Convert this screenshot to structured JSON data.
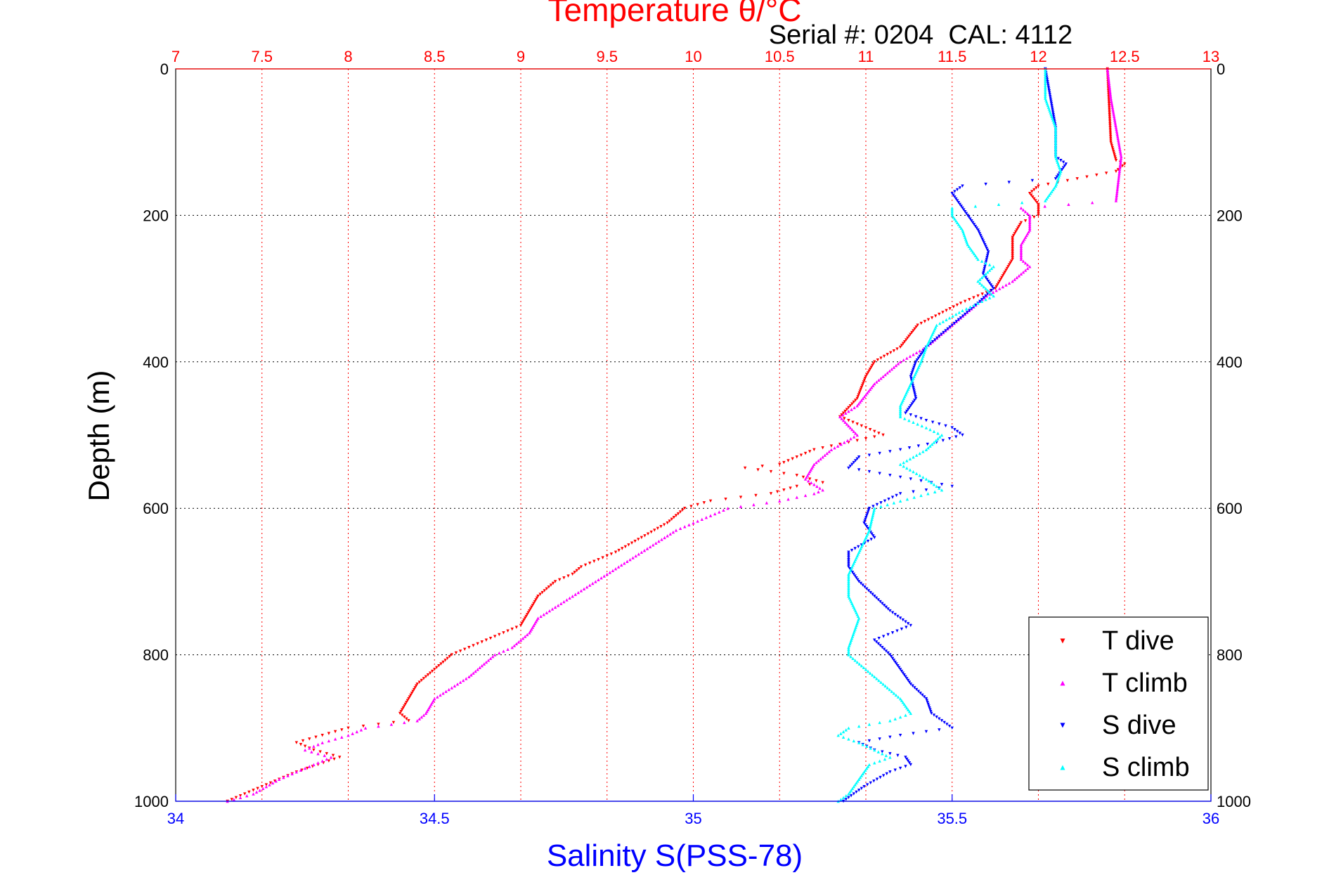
{
  "chart_data": {
    "type": "scatter",
    "title": "Temperature θ/°C",
    "subtitle": "Serial #: 0204  CAL: 4112",
    "ylabel": "Depth (m)",
    "xlabel": "Salinity S(PSS-78)",
    "temperature_axis": {
      "label": "Temperature θ/°C",
      "range": [
        7,
        13
      ],
      "ticks": [
        "7",
        "7.5",
        "8",
        "8.5",
        "9",
        "9.5",
        "10",
        "10.5",
        "11",
        "11.5",
        "12",
        "12.5",
        "13"
      ]
    },
    "salinity_axis": {
      "label": "Salinity S(PSS-78)",
      "range": [
        34,
        36
      ],
      "ticks": [
        "34",
        "34.5",
        "35",
        "35.5",
        "36"
      ]
    },
    "depth_axis": {
      "label": "Depth (m)",
      "range": [
        0,
        1000
      ],
      "reversed": true,
      "ticks": [
        "0",
        "200",
        "400",
        "600",
        "800",
        "1000"
      ]
    },
    "grid": true,
    "legend_position": "bottom-right",
    "series": [
      {
        "name": "T dive",
        "axis": "temperature",
        "color": "#ff0000",
        "marker": "triangle-down",
        "depth": [
          0,
          50,
          100,
          125,
          130,
          140,
          160,
          170,
          185,
          200,
          210,
          230,
          260,
          280,
          300,
          320,
          350,
          380,
          400,
          420,
          450,
          475,
          480,
          490,
          500,
          510,
          520,
          530,
          540,
          545,
          555,
          565,
          570,
          580,
          590,
          600,
          620,
          640,
          660,
          680,
          690,
          700,
          720,
          740,
          760,
          780,
          800,
          820,
          840,
          860,
          880,
          890,
          900,
          910,
          920,
          930,
          940,
          960,
          980,
          1000
        ],
        "values": [
          12.4,
          12.41,
          12.42,
          12.45,
          12.5,
          12.45,
          12.0,
          11.95,
          12.0,
          12.0,
          11.9,
          11.85,
          11.85,
          11.8,
          11.75,
          11.55,
          11.3,
          11.2,
          11.05,
          11.0,
          10.95,
          10.85,
          10.9,
          11.0,
          11.1,
          10.9,
          10.7,
          10.6,
          10.5,
          10.3,
          10.6,
          10.75,
          10.6,
          10.45,
          10.1,
          9.95,
          9.85,
          9.7,
          9.55,
          9.35,
          9.3,
          9.2,
          9.1,
          9.05,
          9.0,
          8.8,
          8.6,
          8.5,
          8.4,
          8.35,
          8.3,
          8.35,
          8.0,
          7.85,
          7.7,
          7.8,
          7.95,
          7.7,
          7.5,
          7.3
        ]
      },
      {
        "name": "T climb",
        "axis": "temperature",
        "color": "#ff00ff",
        "marker": "triangle-up",
        "depth": [
          0,
          40,
          80,
          120,
          140,
          160,
          180,
          190,
          200,
          220,
          240,
          260,
          270,
          290,
          310,
          330,
          350,
          380,
          400,
          430,
          460,
          475,
          500,
          520,
          540,
          560,
          575,
          580,
          590,
          600,
          630,
          660,
          690,
          720,
          750,
          770,
          790,
          800,
          830,
          860,
          880,
          890,
          900,
          910,
          920,
          930,
          940,
          950,
          970,
          990,
          1000
        ],
        "values": [
          12.4,
          12.42,
          12.45,
          12.48,
          12.47,
          12.46,
          12.45,
          11.9,
          11.95,
          11.95,
          11.9,
          11.9,
          11.95,
          11.85,
          11.7,
          11.6,
          11.5,
          11.35,
          11.2,
          11.05,
          10.95,
          10.85,
          10.95,
          10.8,
          10.7,
          10.65,
          10.75,
          10.7,
          10.5,
          10.2,
          9.9,
          9.7,
          9.5,
          9.3,
          9.1,
          9.05,
          8.95,
          8.85,
          8.7,
          8.5,
          8.45,
          8.4,
          8.1,
          8.0,
          7.85,
          7.75,
          7.9,
          7.8,
          7.6,
          7.45,
          7.3
        ]
      },
      {
        "name": "S dive",
        "axis": "salinity",
        "color": "#0000ff",
        "marker": "triangle-down",
        "depth": [
          0,
          40,
          80,
          120,
          130,
          150,
          160,
          170,
          190,
          220,
          250,
          280,
          300,
          320,
          350,
          380,
          400,
          420,
          450,
          470,
          480,
          490,
          500,
          510,
          520,
          530,
          545,
          560,
          570,
          580,
          600,
          620,
          640,
          660,
          680,
          700,
          720,
          740,
          760,
          780,
          800,
          820,
          840,
          860,
          880,
          900,
          910,
          920,
          930,
          940,
          950,
          960,
          980,
          1000
        ],
        "values": [
          35.68,
          35.69,
          35.7,
          35.7,
          35.72,
          35.7,
          35.52,
          35.5,
          35.52,
          35.55,
          35.57,
          35.56,
          35.58,
          35.55,
          35.5,
          35.45,
          35.43,
          35.42,
          35.43,
          35.41,
          35.45,
          35.5,
          35.52,
          35.47,
          35.4,
          35.32,
          35.3,
          35.42,
          35.5,
          35.4,
          35.34,
          35.33,
          35.35,
          35.3,
          35.3,
          35.32,
          35.35,
          35.38,
          35.42,
          35.35,
          35.38,
          35.4,
          35.42,
          35.45,
          35.46,
          35.5,
          35.4,
          35.32,
          35.35,
          35.41,
          35.42,
          35.38,
          35.33,
          35.29
        ]
      },
      {
        "name": "S climb",
        "axis": "salinity",
        "color": "#00ffff",
        "marker": "triangle-up",
        "depth": [
          0,
          40,
          80,
          120,
          140,
          160,
          180,
          190,
          200,
          220,
          240,
          260,
          270,
          290,
          310,
          330,
          350,
          380,
          400,
          430,
          460,
          475,
          490,
          500,
          520,
          540,
          560,
          575,
          590,
          600,
          630,
          660,
          690,
          720,
          750,
          770,
          790,
          800,
          830,
          860,
          880,
          890,
          900,
          910,
          920,
          930,
          940,
          950,
          970,
          990,
          1000
        ],
        "values": [
          35.68,
          35.68,
          35.7,
          35.7,
          35.71,
          35.7,
          35.68,
          35.5,
          35.5,
          35.52,
          35.53,
          35.55,
          35.58,
          35.55,
          35.58,
          35.52,
          35.47,
          35.45,
          35.44,
          35.42,
          35.4,
          35.4,
          35.45,
          35.48,
          35.45,
          35.4,
          35.45,
          35.48,
          35.4,
          35.35,
          35.34,
          35.32,
          35.3,
          35.3,
          35.32,
          35.31,
          35.3,
          35.3,
          35.35,
          35.4,
          35.42,
          35.38,
          35.3,
          35.28,
          35.32,
          35.35,
          35.38,
          35.34,
          35.32,
          35.3,
          35.28
        ]
      }
    ]
  }
}
